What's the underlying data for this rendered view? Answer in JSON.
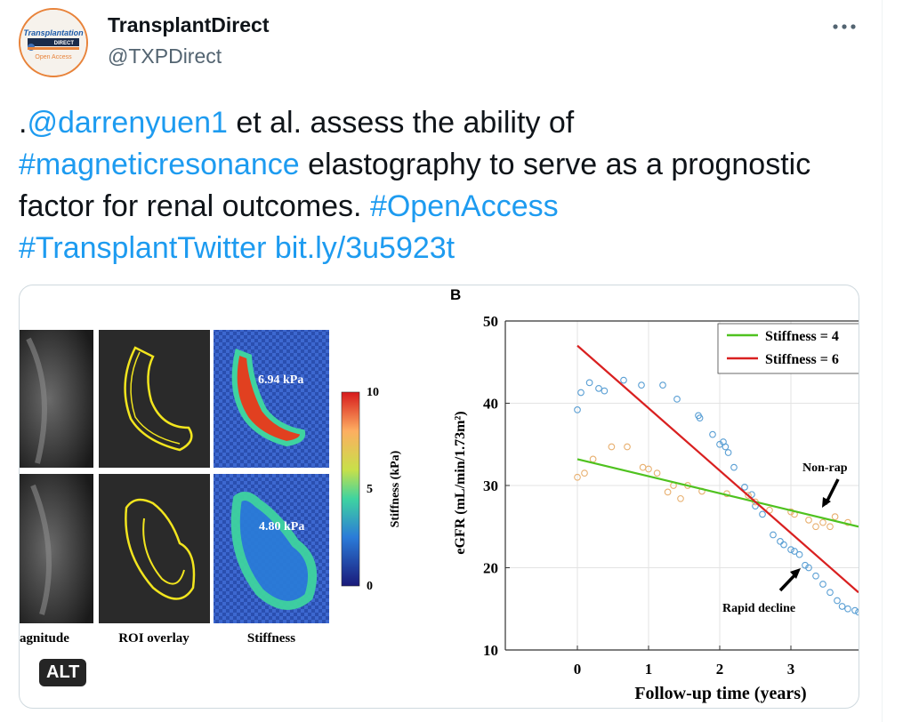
{
  "account": {
    "display_name": "TransplantDirect",
    "handle": "@TXPDirect",
    "avatar": {
      "line1": "Transplantation",
      "line2": "DIRECT",
      "line3": "Open Access",
      "icon": "transplantation-direct-logo"
    }
  },
  "menu": {
    "icon": "more-horizontal-icon"
  },
  "tweet": {
    "prefix": ".",
    "mention": "@darrenyuen1",
    "text1": " et al. assess the ability of ",
    "hashtag1": "#magneticresonance",
    "text2": " elastography to serve as a prognostic factor for renal outcomes. ",
    "hashtag2": "#OpenAccess",
    "hashtag3": "#TransplantTwitter",
    "url": "bit.ly/3u5923t"
  },
  "media": {
    "alt_label": "ALT",
    "panel_a": {
      "column_labels": [
        "agnitude",
        "ROI overlay",
        "Stiffness"
      ],
      "stiffness_values": [
        "6.94 kPa",
        "4.80 kPa"
      ],
      "colorbar": {
        "label": "Stiffness (kPa)",
        "ticks": [
          "10",
          "5",
          "0"
        ]
      }
    },
    "panel_b": {
      "panel_label": "B",
      "annotations": {
        "non_rapid": "Non-rap",
        "rapid": "Rapid decline"
      }
    }
  },
  "chart_data": {
    "type": "scatter",
    "xlabel": "Follow-up time (years)",
    "ylabel": "eGFR (mL/min/1.73m²)",
    "xlim": [
      -1,
      3.95
    ],
    "ylim": [
      10,
      50
    ],
    "x_ticks": [
      "0",
      "1",
      "2",
      "3"
    ],
    "y_ticks": [
      "10",
      "20",
      "30",
      "40",
      "50"
    ],
    "grid": true,
    "legend": {
      "placement": "top-right",
      "entries": [
        "Stiffness = 4",
        "Stiffness = 6"
      ]
    },
    "colors": {
      "green": "#4fc21f",
      "red": "#d92020",
      "blue_points": "#5a9fd4",
      "orange_points": "#e8b070"
    },
    "lines": [
      {
        "name": "Stiffness = 4",
        "color": "#4fc21f",
        "x": [
          0,
          3.95
        ],
        "y": [
          33.2,
          25
        ]
      },
      {
        "name": "Stiffness = 6",
        "color": "#d92020",
        "x": [
          0,
          3.95
        ],
        "y": [
          47,
          17
        ]
      }
    ],
    "series": [
      {
        "color": "#5a9fd4",
        "x": [
          0,
          0.05,
          0.17,
          0.3,
          0.38,
          0.65,
          0.9,
          1.2,
          1.4,
          1.7,
          1.72,
          1.9,
          2.0,
          2.05,
          2.08,
          2.12,
          2.2,
          2.35,
          2.45,
          2.5,
          2.6,
          2.75,
          2.85,
          2.9,
          3.0,
          3.05,
          3.12,
          3.2,
          3.25,
          3.35,
          3.45,
          3.55,
          3.65,
          3.72,
          3.8,
          3.9,
          3.95
        ],
        "y": [
          39.2,
          41.3,
          42.5,
          41.8,
          41.5,
          42.8,
          42.2,
          42.2,
          40.5,
          38.5,
          38.2,
          36.2,
          35.0,
          35.3,
          34.7,
          34.0,
          32.2,
          29.8,
          28.9,
          27.5,
          26.5,
          24.0,
          23.2,
          22.8,
          22.2,
          22.0,
          21.6,
          20.3,
          20.0,
          19.0,
          18.0,
          17.0,
          16.0,
          15.3,
          15.0,
          14.8,
          14.6
        ]
      },
      {
        "color": "#e8b070",
        "x": [
          0,
          0.1,
          0.22,
          0.48,
          0.7,
          0.92,
          1.0,
          1.12,
          1.27,
          1.35,
          1.45,
          1.55,
          1.75,
          2.1,
          2.4,
          2.5,
          2.7,
          3.0,
          3.05,
          3.25,
          3.35,
          3.45,
          3.55,
          3.62,
          3.8
        ],
        "y": [
          31.0,
          31.5,
          33.2,
          34.7,
          34.7,
          32.2,
          32.0,
          31.5,
          29.2,
          30.0,
          28.4,
          30.0,
          29.3,
          29.0,
          28.8,
          28.0,
          27.0,
          26.8,
          26.5,
          25.8,
          25.0,
          25.5,
          25.0,
          26.2,
          25.5
        ]
      }
    ]
  }
}
